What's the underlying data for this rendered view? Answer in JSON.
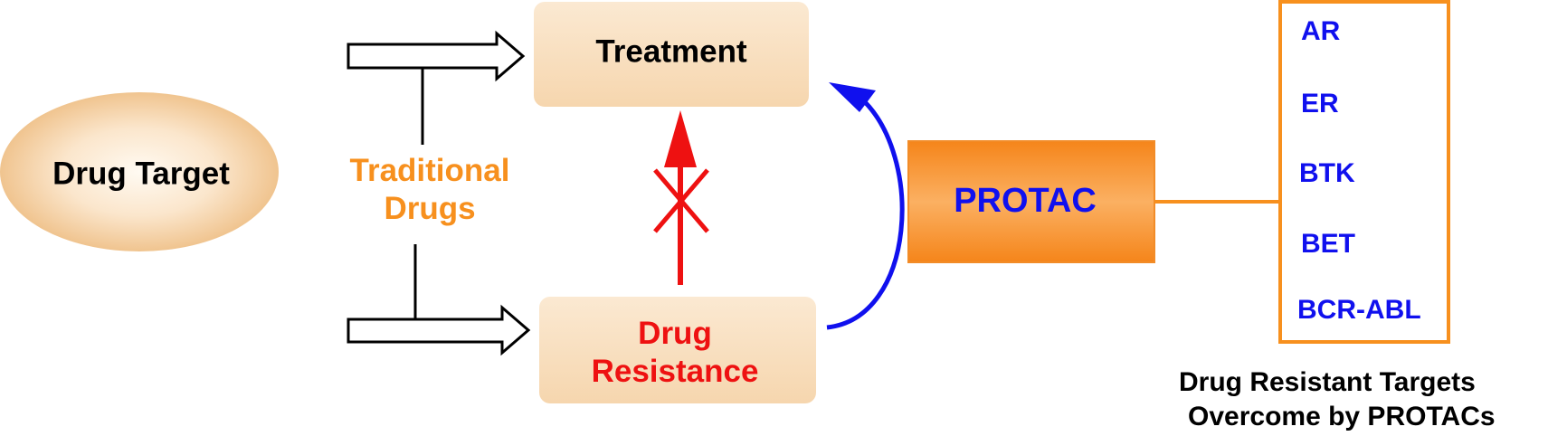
{
  "nodes": {
    "drug_target": "Drug Target",
    "traditional_drugs": [
      "Traditional",
      "Drugs"
    ],
    "treatment": "Treatment",
    "drug_resistance": [
      "Drug",
      "Resistance"
    ],
    "protac": "PROTAC"
  },
  "targets": {
    "items": [
      "AR",
      "ER",
      "BTK",
      "BET",
      "BCR-ABL"
    ],
    "caption": [
      "Drug Resistant Targets",
      "Overcome by PROTACs"
    ]
  },
  "colors": {
    "box_fill": "#f8dfbf",
    "orange": "#f7901e",
    "blue": "#1010ee",
    "red": "#ee1111",
    "black": "#000000"
  }
}
